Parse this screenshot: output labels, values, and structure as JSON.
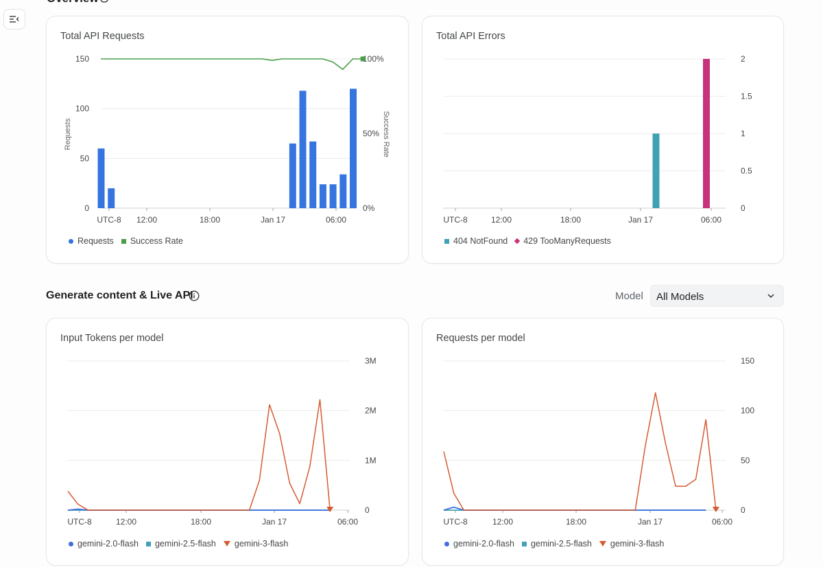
{
  "overview": {
    "title": "Overview"
  },
  "section": {
    "title": "Generate content & Live API",
    "model_label": "Model",
    "model_value": "All Models"
  },
  "colors": {
    "requests": "#3674e0",
    "success": "#4a9d4a",
    "notfound": "#41a0b3",
    "toomany": "#c8327d",
    "g20": "#3f6fe0",
    "g25": "#42a0b8",
    "g3": "#d65a31"
  },
  "cards": {
    "requests": {
      "title": "Total API Requests",
      "left_ticks": [
        "150",
        "100",
        "50",
        "0"
      ],
      "right_ticks": [
        "100%",
        "50%",
        "0%"
      ],
      "x_ticks": [
        "UTC-8",
        "12:00",
        "18:00",
        "Jan 17",
        "06:00"
      ],
      "ylabel": "Requests",
      "y2label": "Success Rate",
      "legend": [
        "Requests",
        "Success Rate"
      ]
    },
    "errors": {
      "title": "Total API Errors",
      "right_ticks": [
        "2",
        "1.5",
        "1",
        "0.5",
        "0"
      ],
      "x_ticks": [
        "UTC-8",
        "12:00",
        "18:00",
        "Jan 17",
        "06:00"
      ],
      "legend": [
        "404 NotFound",
        "429 TooManyRequests"
      ]
    },
    "tokens": {
      "title": "Input Tokens per model",
      "right_ticks": [
        "3M",
        "2M",
        "1M",
        "0"
      ],
      "x_ticks": [
        "UTC-8",
        "12:00",
        "18:00",
        "Jan 17",
        "06:00"
      ],
      "legend": [
        "gemini-2.0-flash",
        "gemini-2.5-flash",
        "gemini-3-flash"
      ]
    },
    "permodel": {
      "title": "Requests per model",
      "right_ticks": [
        "150",
        "100",
        "50",
        "0"
      ],
      "x_ticks": [
        "UTC-8",
        "12:00",
        "18:00",
        "Jan 17",
        "06:00"
      ],
      "legend": [
        "gemini-2.0-flash",
        "gemini-2.5-flash",
        "gemini-3-flash"
      ]
    }
  },
  "chart_data": [
    {
      "type": "bar",
      "title": "Total API Requests",
      "ylabel": "Requests",
      "y2label": "Success Rate",
      "ylim": [
        0,
        150
      ],
      "y2lim": [
        0,
        100
      ],
      "x_unit": "hours since UTC-8 midnight",
      "series": [
        {
          "name": "Requests",
          "kind": "bar",
          "points": [
            [
              0,
              60
            ],
            [
              1,
              20
            ],
            [
              19,
              65
            ],
            [
              20,
              118
            ],
            [
              21,
              67
            ],
            [
              22,
              24
            ],
            [
              23,
              24
            ],
            [
              24,
              34
            ],
            [
              25,
              120
            ]
          ]
        },
        {
          "name": "Success Rate",
          "kind": "line",
          "points": [
            [
              0,
              100
            ],
            [
              4,
              100
            ],
            [
              8,
              100
            ],
            [
              12,
              100
            ],
            [
              16,
              100
            ],
            [
              17,
              99
            ],
            [
              18,
              100
            ],
            [
              21,
              100
            ],
            [
              22,
              100
            ],
            [
              23,
              98
            ],
            [
              24,
              93
            ],
            [
              25,
              100
            ],
            [
              26,
              100
            ]
          ]
        }
      ]
    },
    {
      "type": "bar",
      "title": "Total API Errors",
      "ylim": [
        0,
        2
      ],
      "series": [
        {
          "name": "404 NotFound",
          "points": [
            [
              20,
              1
            ]
          ]
        },
        {
          "name": "429 TooManyRequests",
          "points": [
            [
              25,
              2
            ]
          ]
        }
      ]
    },
    {
      "type": "line",
      "title": "Input Tokens per model",
      "ylim": [
        0,
        3000000
      ],
      "series": [
        {
          "name": "gemini-2.0-flash",
          "points": [
            [
              0,
              0
            ],
            [
              1,
              20000
            ],
            [
              2,
              0
            ],
            [
              26,
              0
            ]
          ]
        },
        {
          "name": "gemini-2.5-flash",
          "points": [
            [
              0,
              0
            ],
            [
              1,
              0
            ],
            [
              26,
              0
            ]
          ]
        },
        {
          "name": "gemini-3-flash",
          "points": [
            [
              0,
              380000
            ],
            [
              1,
              120000
            ],
            [
              2,
              0
            ],
            [
              18,
              0
            ],
            [
              19,
              600000
            ],
            [
              20,
              2120000
            ],
            [
              21,
              1540000
            ],
            [
              22,
              540000
            ],
            [
              23,
              130000
            ],
            [
              24,
              880000
            ],
            [
              25,
              2220000
            ],
            [
              26,
              0
            ]
          ]
        }
      ]
    },
    {
      "type": "line",
      "title": "Requests per model",
      "ylim": [
        0,
        150
      ],
      "series": [
        {
          "name": "gemini-2.0-flash",
          "points": [
            [
              0,
              0
            ],
            [
              1,
              3
            ],
            [
              2,
              0
            ],
            [
              26,
              0
            ]
          ]
        },
        {
          "name": "gemini-2.5-flash",
          "points": [
            [
              0,
              0
            ],
            [
              1,
              0
            ],
            [
              26,
              0
            ]
          ]
        },
        {
          "name": "gemini-3-flash",
          "points": [
            [
              0,
              59
            ],
            [
              1,
              17
            ],
            [
              2,
              0
            ],
            [
              19,
              0
            ],
            [
              20,
              65
            ],
            [
              21,
              118
            ],
            [
              22,
              67
            ],
            [
              23,
              24
            ],
            [
              24,
              24
            ],
            [
              25,
              31
            ],
            [
              26,
              91
            ],
            [
              27,
              0
            ]
          ]
        }
      ]
    }
  ]
}
